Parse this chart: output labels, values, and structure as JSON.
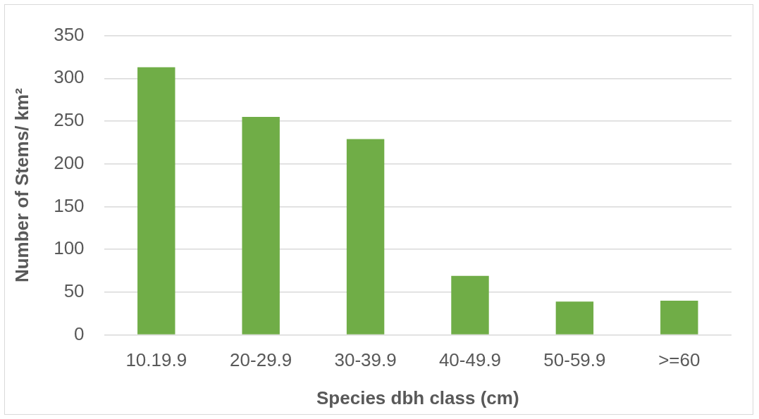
{
  "chart_data": {
    "type": "bar",
    "xlabel": "Species dbh class (cm)",
    "ylabel": "Number of Stems/ km²",
    "categories": [
      "10.19.9",
      "20-29.9",
      "30-39.9",
      "40-49.9",
      "50-59.9",
      ">=60"
    ],
    "values": [
      313,
      255,
      229,
      69,
      39,
      40
    ],
    "color": "#70ad47",
    "ylim": [
      0,
      350
    ],
    "yticks": [
      0,
      50,
      100,
      150,
      200,
      250,
      300,
      350
    ],
    "grid": "y",
    "legend": false
  }
}
